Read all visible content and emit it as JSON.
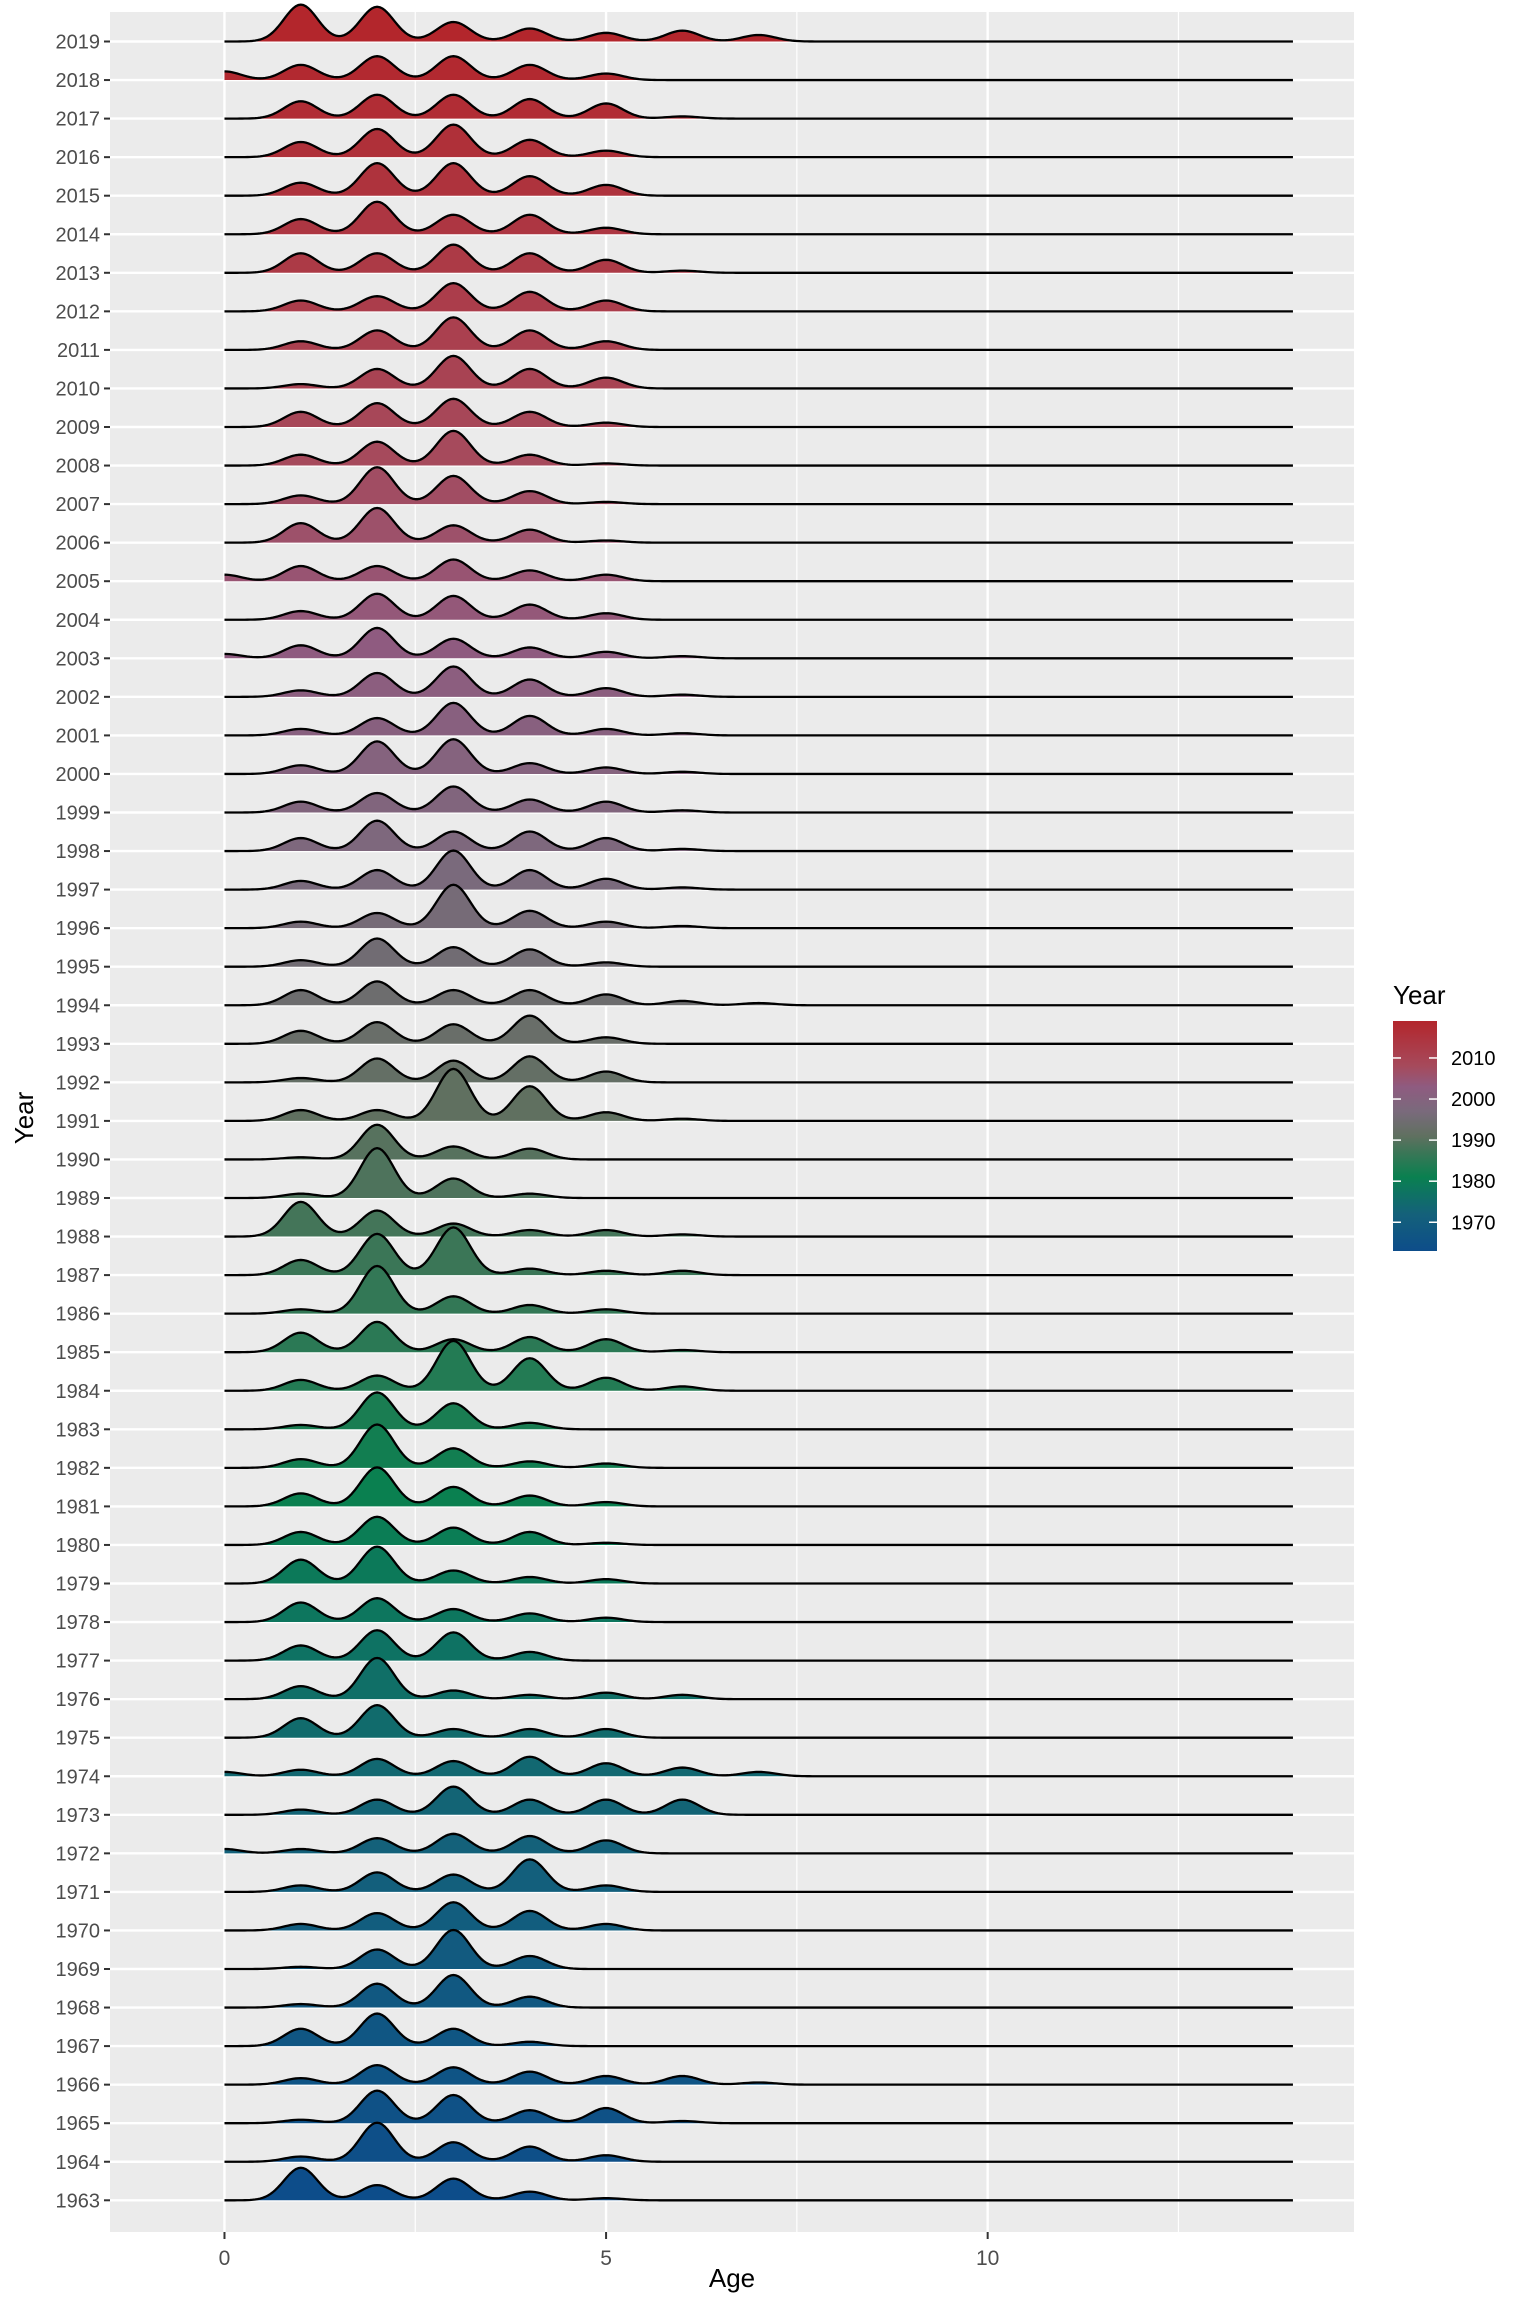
{
  "chart_data": {
    "type": "ridgeline",
    "xlabel": "Age",
    "ylabel": "Year",
    "xlim": [
      -1.5,
      14.8
    ],
    "x_ticks": [
      0,
      5,
      10
    ],
    "x_tick_labels": [
      "0",
      "5",
      "10"
    ],
    "density_x_range": [
      0,
      14
    ],
    "bandwidth": 0.22,
    "ridge_overlap": 1.35,
    "legend": {
      "title": "Year",
      "position": "right",
      "range": [
        1963,
        2019
      ],
      "breaks": [
        1970,
        1980,
        1990,
        2000,
        2010
      ],
      "break_labels": [
        "1970",
        "1980",
        "1990",
        "2000",
        "2010"
      ]
    },
    "colors": {
      "low": "#0d4d8a",
      "mid": "#0a8050",
      "high": "#b3262c",
      "panel": "#ebebeb",
      "grid": "#ffffff",
      "outline": "#000000",
      "text": "#4d4d4d"
    },
    "gradient_stops": [
      {
        "year": 1963,
        "color": "#0d4d8a"
      },
      {
        "year": 1972,
        "color": "#14617a"
      },
      {
        "year": 1981,
        "color": "#0a8050"
      },
      {
        "year": 1987,
        "color": "#3b7657"
      },
      {
        "year": 1991,
        "color": "#607060"
      },
      {
        "year": 1997,
        "color": "#7a6a7c"
      },
      {
        "year": 2003,
        "color": "#8f5b80"
      },
      {
        "year": 2008,
        "color": "#a64a5c"
      },
      {
        "year": 2019,
        "color": "#b3262c"
      }
    ],
    "series": [
      {
        "name": "1963",
        "ages": [
          1,
          2,
          3,
          4,
          5
        ],
        "weights": [
          0.75,
          0.35,
          0.5,
          0.2,
          0.05
        ]
      },
      {
        "name": "1964",
        "ages": [
          1,
          2,
          3,
          4,
          5
        ],
        "weights": [
          0.12,
          0.9,
          0.45,
          0.35,
          0.15
        ]
      },
      {
        "name": "1965",
        "ages": [
          1,
          2,
          3,
          4,
          5,
          6
        ],
        "weights": [
          0.08,
          0.75,
          0.65,
          0.3,
          0.35,
          0.05
        ]
      },
      {
        "name": "1966",
        "ages": [
          1,
          2,
          3,
          4,
          5,
          6,
          7
        ],
        "weights": [
          0.15,
          0.45,
          0.4,
          0.3,
          0.2,
          0.2,
          0.05
        ]
      },
      {
        "name": "1967",
        "ages": [
          1,
          2,
          3,
          4
        ],
        "weights": [
          0.4,
          0.75,
          0.4,
          0.1
        ]
      },
      {
        "name": "1968",
        "ages": [
          1,
          2,
          3,
          4
        ],
        "weights": [
          0.08,
          0.55,
          0.75,
          0.25
        ]
      },
      {
        "name": "1969",
        "ages": [
          1,
          2,
          3,
          4
        ],
        "weights": [
          0.05,
          0.45,
          0.9,
          0.3
        ]
      },
      {
        "name": "1970",
        "ages": [
          1,
          2,
          3,
          4,
          5
        ],
        "weights": [
          0.15,
          0.4,
          0.65,
          0.45,
          0.15
        ]
      },
      {
        "name": "1971",
        "ages": [
          1,
          2,
          3,
          4,
          5
        ],
        "weights": [
          0.15,
          0.45,
          0.4,
          0.75,
          0.15
        ]
      },
      {
        "name": "1972",
        "ages": [
          0,
          1,
          2,
          3,
          4,
          5
        ],
        "weights": [
          0.1,
          0.1,
          0.35,
          0.45,
          0.4,
          0.3
        ]
      },
      {
        "name": "1973",
        "ages": [
          1,
          2,
          3,
          4,
          5,
          6
        ],
        "weights": [
          0.12,
          0.35,
          0.65,
          0.35,
          0.35,
          0.35
        ]
      },
      {
        "name": "1974",
        "ages": [
          0,
          1,
          2,
          3,
          4,
          5,
          6,
          7
        ],
        "weights": [
          0.1,
          0.15,
          0.4,
          0.35,
          0.45,
          0.3,
          0.2,
          0.1
        ]
      },
      {
        "name": "1975",
        "ages": [
          1,
          2,
          3,
          4,
          5
        ],
        "weights": [
          0.45,
          0.75,
          0.2,
          0.2,
          0.2
        ]
      },
      {
        "name": "1976",
        "ages": [
          1,
          2,
          3,
          4,
          5,
          6
        ],
        "weights": [
          0.3,
          0.95,
          0.2,
          0.1,
          0.15,
          0.1
        ]
      },
      {
        "name": "1977",
        "ages": [
          1,
          2,
          3,
          4
        ],
        "weights": [
          0.35,
          0.7,
          0.65,
          0.2
        ]
      },
      {
        "name": "1978",
        "ages": [
          1,
          2,
          3,
          4,
          5
        ],
        "weights": [
          0.45,
          0.55,
          0.3,
          0.2,
          0.1
        ]
      },
      {
        "name": "1979",
        "ages": [
          1,
          2,
          3,
          4,
          5
        ],
        "weights": [
          0.55,
          0.85,
          0.3,
          0.15,
          0.1
        ]
      },
      {
        "name": "1980",
        "ages": [
          1,
          2,
          3,
          4,
          5
        ],
        "weights": [
          0.3,
          0.65,
          0.4,
          0.3,
          0.05
        ]
      },
      {
        "name": "1981",
        "ages": [
          1,
          2,
          3,
          4,
          5
        ],
        "weights": [
          0.3,
          0.9,
          0.45,
          0.25,
          0.1
        ]
      },
      {
        "name": "1982",
        "ages": [
          1,
          2,
          3,
          4,
          5
        ],
        "weights": [
          0.2,
          1.0,
          0.45,
          0.15,
          0.1
        ]
      },
      {
        "name": "1983",
        "ages": [
          1,
          2,
          3,
          4
        ],
        "weights": [
          0.1,
          0.85,
          0.6,
          0.15
        ]
      },
      {
        "name": "1984",
        "ages": [
          1,
          2,
          3,
          4,
          5,
          6
        ],
        "weights": [
          0.25,
          0.35,
          1.15,
          0.75,
          0.3,
          0.1
        ]
      },
      {
        "name": "1985",
        "ages": [
          1,
          2,
          3,
          4,
          5,
          6
        ],
        "weights": [
          0.45,
          0.7,
          0.3,
          0.35,
          0.3,
          0.05
        ]
      },
      {
        "name": "1986",
        "ages": [
          1,
          2,
          3,
          4,
          5
        ],
        "weights": [
          0.1,
          1.1,
          0.4,
          0.2,
          0.1
        ]
      },
      {
        "name": "1987",
        "ages": [
          1,
          2,
          3,
          4,
          5,
          6
        ],
        "weights": [
          0.35,
          0.95,
          1.1,
          0.15,
          0.1,
          0.1
        ]
      },
      {
        "name": "1988",
        "ages": [
          1,
          2,
          3,
          4,
          5,
          6
        ],
        "weights": [
          0.8,
          0.6,
          0.3,
          0.15,
          0.15,
          0.05
        ]
      },
      {
        "name": "1989",
        "ages": [
          1,
          2,
          3,
          4
        ],
        "weights": [
          0.1,
          1.15,
          0.45,
          0.1
        ]
      },
      {
        "name": "1990",
        "ages": [
          1,
          2,
          3,
          4
        ],
        "weights": [
          0.05,
          0.8,
          0.3,
          0.25
        ]
      },
      {
        "name": "1991",
        "ages": [
          1,
          2,
          3,
          4,
          5,
          6
        ],
        "weights": [
          0.25,
          0.25,
          1.2,
          0.8,
          0.2,
          0.05
        ]
      },
      {
        "name": "1992",
        "ages": [
          1,
          2,
          3,
          4,
          5
        ],
        "weights": [
          0.1,
          0.55,
          0.5,
          0.6,
          0.25
        ]
      },
      {
        "name": "1993",
        "ages": [
          1,
          2,
          3,
          4,
          5
        ],
        "weights": [
          0.3,
          0.5,
          0.45,
          0.65,
          0.15
        ]
      },
      {
        "name": "1994",
        "ages": [
          1,
          2,
          3,
          4,
          5,
          6,
          7
        ],
        "weights": [
          0.35,
          0.55,
          0.35,
          0.35,
          0.25,
          0.1,
          0.05
        ]
      },
      {
        "name": "1995",
        "ages": [
          1,
          2,
          3,
          4,
          5
        ],
        "weights": [
          0.15,
          0.65,
          0.45,
          0.4,
          0.1
        ]
      },
      {
        "name": "1996",
        "ages": [
          1,
          2,
          3,
          4,
          5,
          6
        ],
        "weights": [
          0.15,
          0.35,
          1.0,
          0.4,
          0.15,
          0.05
        ]
      },
      {
        "name": "1997",
        "ages": [
          1,
          2,
          3,
          4,
          5,
          6
        ],
        "weights": [
          0.2,
          0.45,
          0.9,
          0.45,
          0.25,
          0.05
        ]
      },
      {
        "name": "1998",
        "ages": [
          1,
          2,
          3,
          4,
          5,
          6
        ],
        "weights": [
          0.3,
          0.7,
          0.45,
          0.45,
          0.3,
          0.05
        ]
      },
      {
        "name": "1999",
        "ages": [
          1,
          2,
          3,
          4,
          5,
          6
        ],
        "weights": [
          0.25,
          0.45,
          0.6,
          0.3,
          0.25,
          0.05
        ]
      },
      {
        "name": "2000",
        "ages": [
          1,
          2,
          3,
          4,
          5,
          6
        ],
        "weights": [
          0.2,
          0.75,
          0.8,
          0.25,
          0.15,
          0.05
        ]
      },
      {
        "name": "2001",
        "ages": [
          1,
          2,
          3,
          4,
          5,
          6
        ],
        "weights": [
          0.15,
          0.4,
          0.75,
          0.45,
          0.15,
          0.05
        ]
      },
      {
        "name": "2002",
        "ages": [
          1,
          2,
          3,
          4,
          5,
          6
        ],
        "weights": [
          0.15,
          0.55,
          0.7,
          0.4,
          0.2,
          0.05
        ]
      },
      {
        "name": "2003",
        "ages": [
          0,
          1,
          2,
          3,
          4,
          5,
          6
        ],
        "weights": [
          0.1,
          0.3,
          0.7,
          0.45,
          0.25,
          0.15,
          0.05
        ]
      },
      {
        "name": "2004",
        "ages": [
          1,
          2,
          3,
          4,
          5
        ],
        "weights": [
          0.2,
          0.6,
          0.55,
          0.35,
          0.15
        ]
      },
      {
        "name": "2005",
        "ages": [
          0,
          1,
          2,
          3,
          4,
          5
        ],
        "weights": [
          0.15,
          0.35,
          0.35,
          0.5,
          0.25,
          0.15
        ]
      },
      {
        "name": "2006",
        "ages": [
          1,
          2,
          3,
          4,
          5
        ],
        "weights": [
          0.45,
          0.8,
          0.4,
          0.3,
          0.05
        ]
      },
      {
        "name": "2007",
        "ages": [
          1,
          2,
          3,
          4,
          5
        ],
        "weights": [
          0.2,
          0.85,
          0.65,
          0.3,
          0.05
        ]
      },
      {
        "name": "2008",
        "ages": [
          1,
          2,
          3,
          4,
          5
        ],
        "weights": [
          0.25,
          0.55,
          0.8,
          0.25,
          0.05
        ]
      },
      {
        "name": "2009",
        "ages": [
          1,
          2,
          3,
          4,
          5
        ],
        "weights": [
          0.35,
          0.55,
          0.65,
          0.35,
          0.1
        ]
      },
      {
        "name": "2010",
        "ages": [
          1,
          2,
          3,
          4,
          5
        ],
        "weights": [
          0.1,
          0.45,
          0.75,
          0.45,
          0.25
        ]
      },
      {
        "name": "2011",
        "ages": [
          1,
          2,
          3,
          4,
          5
        ],
        "weights": [
          0.2,
          0.45,
          0.75,
          0.45,
          0.2
        ]
      },
      {
        "name": "2012",
        "ages": [
          1,
          2,
          3,
          4,
          5
        ],
        "weights": [
          0.25,
          0.35,
          0.65,
          0.45,
          0.25
        ]
      },
      {
        "name": "2013",
        "ages": [
          1,
          2,
          3,
          4,
          5,
          6
        ],
        "weights": [
          0.45,
          0.45,
          0.65,
          0.45,
          0.3,
          0.05
        ]
      },
      {
        "name": "2014",
        "ages": [
          1,
          2,
          3,
          4,
          5
        ],
        "weights": [
          0.35,
          0.75,
          0.45,
          0.45,
          0.15
        ]
      },
      {
        "name": "2015",
        "ages": [
          1,
          2,
          3,
          4,
          5
        ],
        "weights": [
          0.3,
          0.75,
          0.75,
          0.45,
          0.25
        ]
      },
      {
        "name": "2016",
        "ages": [
          1,
          2,
          3,
          4,
          5
        ],
        "weights": [
          0.35,
          0.65,
          0.75,
          0.4,
          0.15
        ]
      },
      {
        "name": "2017",
        "ages": [
          1,
          2,
          3,
          4,
          5,
          6
        ],
        "weights": [
          0.4,
          0.55,
          0.55,
          0.45,
          0.35,
          0.05
        ]
      },
      {
        "name": "2018",
        "ages": [
          0,
          1,
          2,
          3,
          4,
          5
        ],
        "weights": [
          0.2,
          0.35,
          0.55,
          0.55,
          0.35,
          0.15
        ]
      },
      {
        "name": "2019",
        "ages": [
          1,
          2,
          3,
          4,
          5,
          6,
          7
        ],
        "weights": [
          0.85,
          0.8,
          0.45,
          0.3,
          0.2,
          0.25,
          0.15
        ]
      }
    ]
  }
}
